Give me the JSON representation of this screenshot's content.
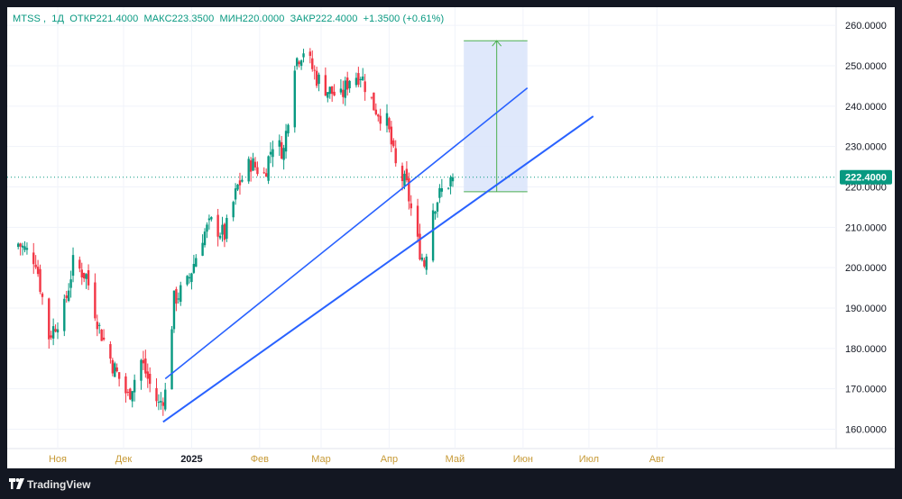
{
  "legend": {
    "symbol": "MTSS",
    "interval": "1Д",
    "open_label": "ОТКР",
    "open": "221.4000",
    "high_label": "МАКС",
    "high": "223.3500",
    "low_label": "МИН",
    "low": "220.0000",
    "close_label": "ЗАКР",
    "close": "222.4000",
    "change": "+1.3500 (+0.61%)"
  },
  "price_badge": "222.4000",
  "branding": {
    "name": "TradingView"
  },
  "colors": {
    "up": "#089981",
    "down": "#f23645",
    "trendline": "#2962ff",
    "projection_fill": "#dbe6fb",
    "projection_line": "#4caf50",
    "axis_text": "#131722",
    "time_text": "#c79a36",
    "grid": "#f0f3fa"
  },
  "chart_data": {
    "type": "candlestick",
    "symbol": "MTSS",
    "interval": "1Д",
    "y_ticks": [
      "160.0000",
      "170.0000",
      "180.0000",
      "190.0000",
      "200.0000",
      "210.0000",
      "220.0000",
      "230.0000",
      "240.0000",
      "250.0000",
      "260.0000"
    ],
    "ylim": [
      155.2,
      264.5
    ],
    "x_ticks": [
      {
        "label": "Ноя",
        "date": "2024-11-01"
      },
      {
        "label": "Дек",
        "date": "2024-12-01"
      },
      {
        "label": "2025",
        "date": "2025-01-01"
      },
      {
        "label": "Фев",
        "date": "2025-02-01"
      },
      {
        "label": "Мар",
        "date": "2025-03-01"
      },
      {
        "label": "Апр",
        "date": "2025-04-01"
      },
      {
        "label": "Май",
        "date": "2025-05-01"
      },
      {
        "label": "Июн",
        "date": "2025-06-01"
      },
      {
        "label": "Июл",
        "date": "2025-07-01"
      },
      {
        "label": "Авг",
        "date": "2025-08-01"
      }
    ],
    "last_price": 222.4,
    "anchors": [
      [
        "2024-10-14",
        206
      ],
      [
        "2024-10-22",
        202
      ],
      [
        "2024-10-28",
        183
      ],
      [
        "2024-11-04",
        190
      ],
      [
        "2024-11-08",
        201
      ],
      [
        "2024-11-14",
        198
      ],
      [
        "2024-11-20",
        185
      ],
      [
        "2024-11-26",
        176
      ],
      [
        "2024-12-03",
        168
      ],
      [
        "2024-12-09",
        177
      ],
      [
        "2024-12-13",
        171
      ],
      [
        "2024-12-17",
        166
      ],
      [
        "2024-12-20",
        169
      ],
      [
        "2024-12-24",
        192
      ],
      [
        "2024-12-30",
        196
      ],
      [
        "2025-01-06",
        208
      ],
      [
        "2025-01-10",
        211
      ],
      [
        "2025-01-16",
        208
      ],
      [
        "2025-01-22",
        220
      ],
      [
        "2025-01-28",
        226
      ],
      [
        "2025-02-03",
        223
      ],
      [
        "2025-02-07",
        231
      ],
      [
        "2025-02-12",
        229
      ],
      [
        "2025-02-17",
        251
      ],
      [
        "2025-02-21",
        254
      ],
      [
        "2025-02-27",
        247
      ],
      [
        "2025-03-04",
        244
      ],
      [
        "2025-03-10",
        242
      ],
      [
        "2025-03-14",
        247
      ],
      [
        "2025-03-19",
        248
      ],
      [
        "2025-03-25",
        240
      ],
      [
        "2025-03-31",
        236
      ],
      [
        "2025-04-04",
        225
      ],
      [
        "2025-04-09",
        220
      ],
      [
        "2025-04-14",
        206
      ],
      [
        "2025-04-17",
        201
      ],
      [
        "2025-04-21",
        215
      ],
      [
        "2025-04-25",
        219
      ],
      [
        "2025-04-28",
        221
      ],
      [
        "2025-04-30",
        222.4
      ]
    ],
    "trendlines": [
      {
        "from": [
          "2024-12-19",
          161.8
        ],
        "to": [
          "2025-07-03",
          237.5
        ]
      },
      {
        "from": [
          "2024-12-20",
          172.5
        ],
        "to": [
          "2025-06-03",
          244.5
        ]
      }
    ],
    "projection": {
      "from_date": "2025-05-05",
      "to_date": "2025-06-03",
      "low": 218.8,
      "high": 256.2,
      "arrow_date": "2025-05-20"
    }
  }
}
